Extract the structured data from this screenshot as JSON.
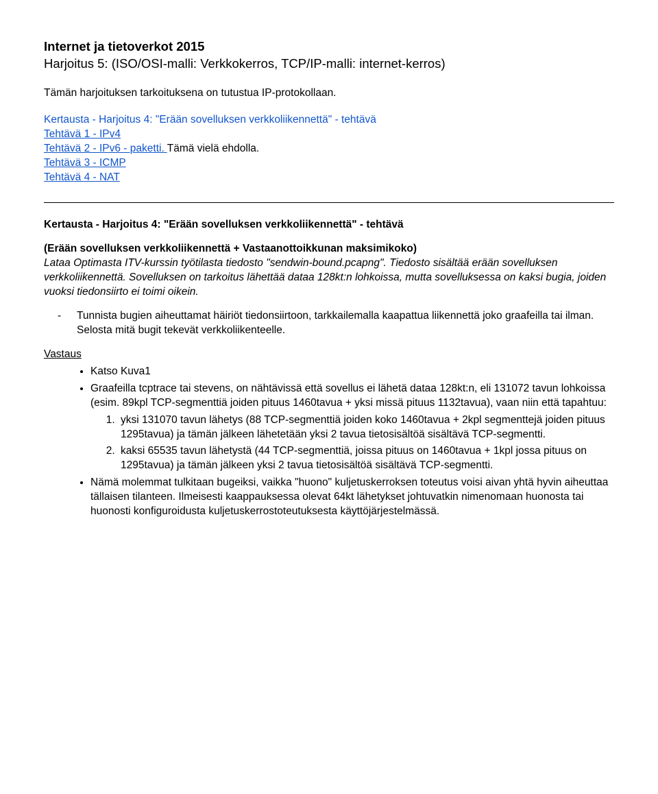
{
  "title": {
    "line1": "Internet ja tietoverkot 2015",
    "line2": "Harjoitus 5: (ISO/OSI-malli: Verkkokerros,  TCP/IP-malli: internet-kerros)"
  },
  "intro": "Tämän harjoituksen tarkoituksena on tutustua IP-protokollaan.",
  "recap": {
    "heading": "Kertausta - Harjoitus 4: \"Erään sovelluksen verkkoliikennettä\" - tehtävä",
    "t1": "Tehtävä 1 - IPv4",
    "t2a": "Tehtävä 2 - IPv6 - paketti. ",
    "t2b": "Tämä vielä ehdolla.",
    "t3": "Tehtävä 3 - ICMP",
    "t4": "Tehtävä 4 - NAT"
  },
  "main": {
    "heading": "Kertausta - Harjoitus 4: \"Erään sovelluksen verkkoliikennettä\" - tehtävä",
    "subheading": "(Erään sovelluksen verkkoliikennettä + Vastaanottoikkunan maksimikoko)",
    "italic_p1": "Lataa Optimasta ITV-kurssin työtilasta tiedosto \"sendwin-bound.pcapng\". Tiedosto sisältää erään sovelluksen verkkoliikennettä. Sovelluksen on tarkoitus lähettää dataa 128kt:n lohkoissa, mutta sovelluksessa on kaksi bugia, joiden vuoksi tiedonsiirto ei toimi oikein.",
    "dash_item": "Tunnista bugien aiheuttamat häiriöt tiedonsiirtoon, tarkkailemalla kaapattua liikennettä joko graafeilla tai ilman. Selosta mitä bugit tekevät verkkoliikenteelle.",
    "answer_label": "Vastaus",
    "b1": "Katso Kuva1",
    "b2": "Graafeilla tcptrace tai stevens, on nähtävissä että sovellus ei lähetä dataa 128kt:n, eli 131072 tavun lohkoissa (esim. 89kpl TCP-segmenttiä joiden pituus 1460tavua + yksi missä pituus 1132tavua), vaan niin että tapahtuu:",
    "n1": "yksi 131070 tavun lähetys (88 TCP-segmenttiä joiden koko 1460tavua + 2kpl segmenttejä joiden pituus 1295tavua) ja tämän jälkeen lähetetään yksi 2 tavua tietosisältöä sisältävä TCP-segmentti.",
    "n2": "kaksi 65535 tavun lähetystä (44 TCP-segmenttiä, joissa pituus on 1460tavua + 1kpl jossa pituus on 1295tavua) ja tämän jälkeen yksi 2 tavua tietosisältöä sisältävä TCP-segmentti.",
    "b3": "Nämä molemmat tulkitaan bugeiksi, vaikka \"huono\" kuljetuskerroksen toteutus voisi aivan yhtä hyvin aiheuttaa tällaisen tilanteen. Ilmeisesti kaappauksessa olevat 64kt lähetykset johtuvatkin nimenomaan huonosta tai huonosti konfiguroidusta kuljetuskerrostoteutuksesta käyttöjärjestelmässä."
  }
}
